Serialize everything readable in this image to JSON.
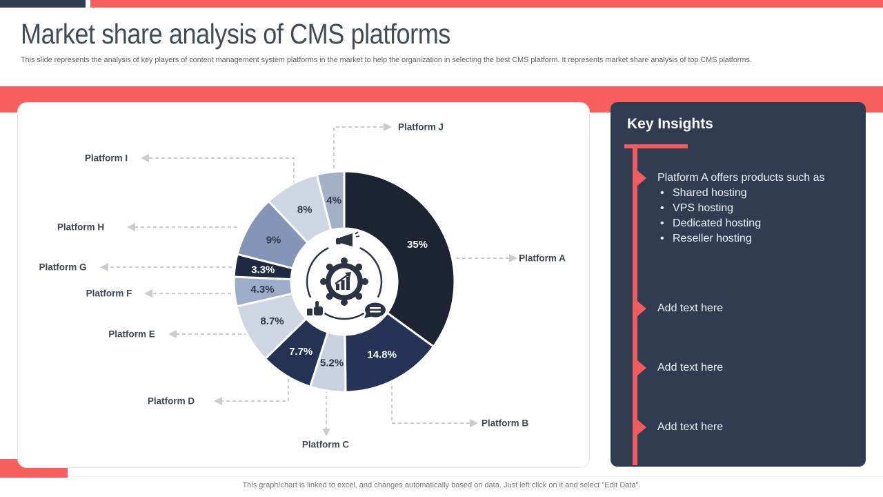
{
  "page": {
    "title": "Market share analysis of CMS platforms",
    "subtitle": "This slide represents the analysis of key players of content management system platforms in the market to help the organization in selecting the best CMS platform. It represents market share analysis of top CMS platforms.",
    "footer": "This graph/chart is linked to excel, and changes automatically based on data. Just left click on it and select \"Edit Data\"."
  },
  "colors": {
    "accent_red": "#F7605D",
    "panel_navy": "#2F3C52",
    "top_bar_navy": "#2F3B50",
    "icon_navy": "#2B3442",
    "label_text": "#3E4751"
  },
  "chart_data": {
    "type": "pie",
    "subtype": "donut",
    "title": "Market share analysis of CMS platforms",
    "start_angle_deg": 0,
    "direction": "clockwise",
    "legend_position": "callout-labels",
    "center_icon": "marketing-growth-gear-icon",
    "segments": [
      {
        "label": "Platform A",
        "value": 35,
        "display": "35%",
        "color": "#1C2433",
        "text_color": "#FFFFFF"
      },
      {
        "label": "Platform B",
        "value": 14.8,
        "display": "14.8%",
        "color": "#253456",
        "text_color": "#FFFFFF"
      },
      {
        "label": "Platform C",
        "value": 5.2,
        "display": "5.2%",
        "color": "#C9D2E1",
        "text_color": "#2D3749"
      },
      {
        "label": "Platform D",
        "value": 7.7,
        "display": "7.7%",
        "color": "#243253",
        "text_color": "#FFFFFF"
      },
      {
        "label": "Platform E",
        "value": 8.7,
        "display": "8.7%",
        "color": "#CFD6E3",
        "text_color": "#2D3749"
      },
      {
        "label": "Platform F",
        "value": 4.3,
        "display": "4.3%",
        "color": "#9DACC8",
        "text_color": "#2D3749"
      },
      {
        "label": "Platform G",
        "value": 3.3,
        "display": "3.3%",
        "color": "#1F2A42",
        "text_color": "#FFFFFF"
      },
      {
        "label": "Platform H",
        "value": 9,
        "display": "9%",
        "color": "#8496B7",
        "text_color": "#2D3749"
      },
      {
        "label": "Platform I",
        "value": 8,
        "display": "8%",
        "color": "#CED6E3",
        "text_color": "#2D3749"
      },
      {
        "label": "Platform J",
        "value": 4,
        "display": "4%",
        "color": "#A2B0C8",
        "text_color": "#2D3749"
      }
    ]
  },
  "insights": {
    "title": "Key Insights",
    "items": [
      {
        "text": "Platform A offers products such as",
        "sub_items": [
          "Shared hosting",
          "VPS hosting",
          "Dedicated hosting",
          "Reseller hosting"
        ]
      },
      {
        "text": "Add text here",
        "sub_items": []
      },
      {
        "text": "Add text here",
        "sub_items": []
      },
      {
        "text": "Add text here",
        "sub_items": []
      }
    ]
  }
}
